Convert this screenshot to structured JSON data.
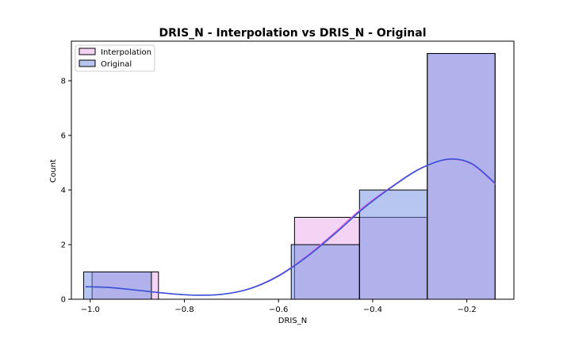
{
  "chart_data": {
    "type": "histogram",
    "title": "DRIS_N - Interpolation vs DRIS_N - Original",
    "xlabel": "DRIS_N",
    "ylabel": "Count",
    "xlim": [
      -1.04,
      -0.1
    ],
    "ylim": [
      0,
      9.45
    ],
    "xticks": [
      -1.0,
      -0.8,
      -0.6,
      -0.4,
      -0.2
    ],
    "xtick_labels": [
      "−1.0",
      "−0.8",
      "−0.6",
      "−0.4",
      "−0.2"
    ],
    "yticks": [
      0,
      2,
      4,
      6,
      8
    ],
    "ytick_labels": [
      "0",
      "2",
      "4",
      "6",
      "8"
    ],
    "legend_position": "top-left",
    "grid": false,
    "series": [
      {
        "name": "Interpolation",
        "color": "#e7a9eb",
        "bins": [
          {
            "x0": -0.996,
            "x1": -0.855,
            "count": 1
          },
          {
            "x0": -0.855,
            "x1": -0.714,
            "count": 0
          },
          {
            "x0": -0.714,
            "x1": -0.573,
            "count": 0
          },
          {
            "x0": -0.566,
            "x1": -0.428,
            "count": 3
          },
          {
            "x0": -0.428,
            "x1": -0.284,
            "count": 3
          },
          {
            "x0": -0.284,
            "x1": -0.14,
            "count": 9
          }
        ],
        "kde": [
          [
            -1.01,
            0.46
          ],
          [
            -0.96,
            0.43
          ],
          [
            -0.9,
            0.33
          ],
          [
            -0.84,
            0.22
          ],
          [
            -0.78,
            0.15
          ],
          [
            -0.72,
            0.18
          ],
          [
            -0.66,
            0.4
          ],
          [
            -0.6,
            0.87
          ],
          [
            -0.54,
            1.58
          ],
          [
            -0.48,
            2.45
          ],
          [
            -0.42,
            3.37
          ],
          [
            -0.36,
            4.12
          ],
          [
            -0.3,
            4.78
          ],
          [
            -0.24,
            5.12
          ],
          [
            -0.19,
            4.95
          ],
          [
            -0.14,
            4.22
          ]
        ]
      },
      {
        "name": "Original",
        "color": "#6f8ee3",
        "bins": [
          {
            "x0": -1.014,
            "x1": -0.87,
            "count": 1
          },
          {
            "x0": -0.87,
            "x1": -0.573,
            "count": 0
          },
          {
            "x0": -0.573,
            "x1": -0.428,
            "count": 2
          },
          {
            "x0": -0.428,
            "x1": -0.284,
            "count": 4
          },
          {
            "x0": -0.284,
            "x1": -0.14,
            "count": 9
          }
        ],
        "kde": [
          [
            -1.01,
            0.46
          ],
          [
            -0.96,
            0.43
          ],
          [
            -0.9,
            0.33
          ],
          [
            -0.84,
            0.22
          ],
          [
            -0.78,
            0.15
          ],
          [
            -0.72,
            0.18
          ],
          [
            -0.66,
            0.39
          ],
          [
            -0.6,
            0.85
          ],
          [
            -0.54,
            1.55
          ],
          [
            -0.48,
            2.4
          ],
          [
            -0.42,
            3.32
          ],
          [
            -0.36,
            4.1
          ],
          [
            -0.3,
            4.77
          ],
          [
            -0.24,
            5.13
          ],
          [
            -0.19,
            4.97
          ],
          [
            -0.14,
            4.25
          ]
        ]
      }
    ],
    "kde_colors": {
      "Interpolation": "#d466e0",
      "Original": "#2f4fd6"
    }
  }
}
